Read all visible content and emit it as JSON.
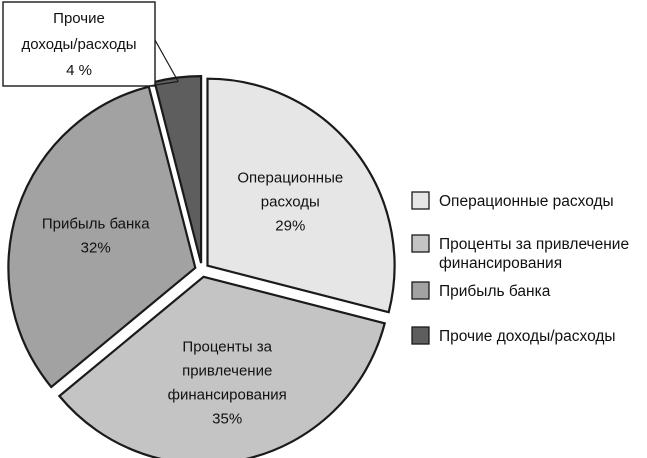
{
  "chart_data": {
    "type": "pie",
    "title": "",
    "slices": [
      {
        "key": "op",
        "label_lines": [
          "Операционные",
          "расходы"
        ],
        "value": 29,
        "display": "29%",
        "color": "#e6e6e6"
      },
      {
        "key": "fin",
        "label_lines": [
          "Проценты за",
          "привлечение",
          "финансирования"
        ],
        "value": 35,
        "display": "35%",
        "color": "#c4c4c4"
      },
      {
        "key": "profit",
        "label_lines": [
          "Прибыль банка"
        ],
        "value": 32,
        "display": "32%",
        "color": "#a2a2a2"
      },
      {
        "key": "other",
        "label_lines": [
          "Прочие",
          "доходы/расходы"
        ],
        "value": 4,
        "display": "4 %",
        "color": "#5e5e5e"
      }
    ],
    "legend": {
      "placement": "right",
      "entries": [
        {
          "key": "op",
          "lines": [
            "Операционные расходы"
          ]
        },
        {
          "key": "fin",
          "lines": [
            "Проценты за привлечение",
            "финансирования"
          ]
        },
        {
          "key": "profit",
          "lines": [
            "Прибыль банка"
          ]
        },
        {
          "key": "other",
          "lines": [
            "Прочие доходы/расходы"
          ]
        }
      ]
    }
  }
}
